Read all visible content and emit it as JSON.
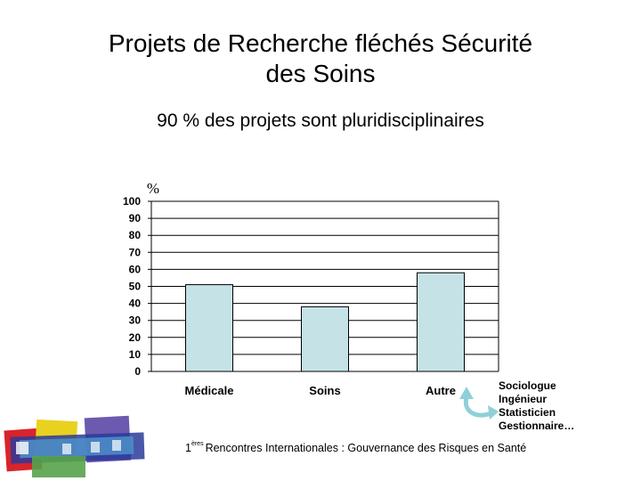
{
  "slide": {
    "title_line1": "Projets de Recherche fléchés Sécurité",
    "title_line2": "des Soins",
    "subtitle": "90 % des projets sont pluridisciplinaires"
  },
  "chart_data": {
    "type": "bar",
    "title": "",
    "ylabel": "%",
    "xlabel": "",
    "ylim": [
      0,
      100
    ],
    "yticks": [
      0,
      10,
      20,
      30,
      40,
      50,
      60,
      70,
      80,
      90,
      100
    ],
    "grid": true,
    "categories": [
      "Médicale",
      "Soins",
      "Autre"
    ],
    "values": [
      51,
      38,
      58
    ],
    "colors": {
      "bar": "#c5e3e6",
      "bar_stroke": "#000000",
      "grid": "#000000"
    }
  },
  "annotation": {
    "lines": [
      "Sociologue",
      "Ingénieur",
      "Statisticien",
      "Gestionnaire…"
    ],
    "arrow_color": "#8fd0d8"
  },
  "footer": {
    "sup": "ères",
    "prefix": "1",
    "text": "Rencontres Internationales : Gouvernance des Risques en Santé"
  },
  "logo": {
    "icon": "conference-logo-icon"
  }
}
